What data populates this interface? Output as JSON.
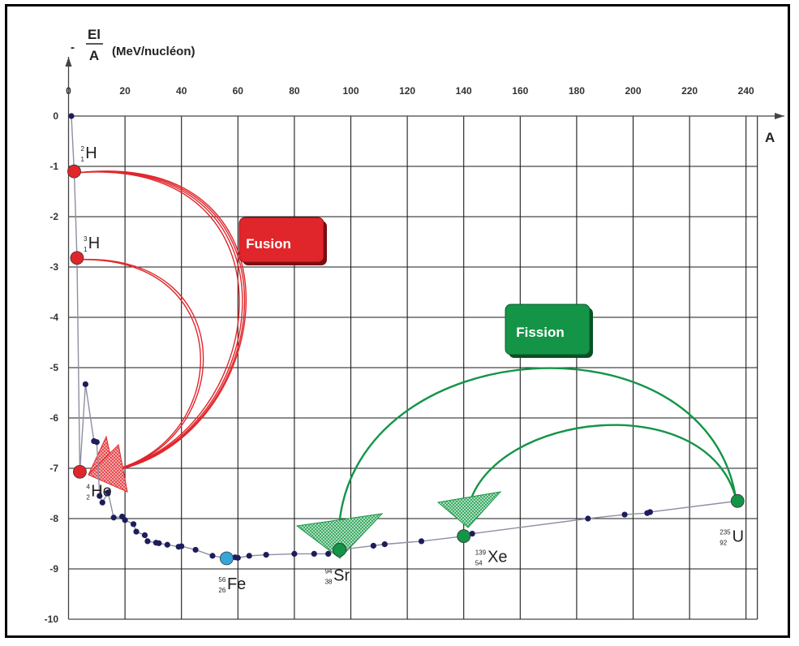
{
  "colors": {
    "grid": "#1a1a1a",
    "curve": "#8e8ea3",
    "point": "#1d1d5c",
    "fusion": "#e0262b",
    "fission": "#149447",
    "iron": "#34a6dc"
  },
  "chart_data": {
    "type": "scatter",
    "xlabel": "A",
    "ylabel": {
      "sign": "-",
      "numerator": "El",
      "denominator": "A",
      "unit": "(MeV/nucléon)"
    },
    "xlim": [
      0,
      240
    ],
    "ylim": [
      -10,
      0
    ],
    "x_ticks": [
      0,
      20,
      40,
      60,
      80,
      100,
      120,
      140,
      160,
      180,
      200,
      220,
      240
    ],
    "y_ticks": [
      0,
      -1,
      -2,
      -3,
      -4,
      -5,
      -6,
      -7,
      -8,
      -9,
      -10
    ],
    "grid": true,
    "points": [
      {
        "x": 1,
        "y": 0
      },
      {
        "x": 6,
        "y": -5.33
      },
      {
        "x": 9,
        "y": -6.46
      },
      {
        "x": 10,
        "y": -6.48
      },
      {
        "x": 11,
        "y": -7.55
      },
      {
        "x": 12,
        "y": -7.68
      },
      {
        "x": 14,
        "y": -7.48
      },
      {
        "x": 16,
        "y": -7.98
      },
      {
        "x": 19,
        "y": -7.96
      },
      {
        "x": 20,
        "y": -8.03
      },
      {
        "x": 23,
        "y": -8.11
      },
      {
        "x": 24,
        "y": -8.26
      },
      {
        "x": 27,
        "y": -8.33
      },
      {
        "x": 28,
        "y": -8.45
      },
      {
        "x": 31,
        "y": -8.48
      },
      {
        "x": 32,
        "y": -8.49
      },
      {
        "x": 35,
        "y": -8.52
      },
      {
        "x": 39,
        "y": -8.56
      },
      {
        "x": 40,
        "y": -8.55
      },
      {
        "x": 45,
        "y": -8.62
      },
      {
        "x": 51,
        "y": -8.74
      },
      {
        "x": 59,
        "y": -8.77
      },
      {
        "x": 60,
        "y": -8.78
      },
      {
        "x": 64,
        "y": -8.74
      },
      {
        "x": 70,
        "y": -8.72
      },
      {
        "x": 80,
        "y": -8.7
      },
      {
        "x": 87,
        "y": -8.7
      },
      {
        "x": 92,
        "y": -8.7
      },
      {
        "x": 108,
        "y": -8.54
      },
      {
        "x": 112,
        "y": -8.51
      },
      {
        "x": 125,
        "y": -8.45
      },
      {
        "x": 143,
        "y": -8.3
      },
      {
        "x": 184,
        "y": -8.0
      },
      {
        "x": 197,
        "y": -7.92
      },
      {
        "x": 205,
        "y": -7.89
      },
      {
        "x": 206,
        "y": -7.87
      }
    ],
    "nuclides": [
      {
        "id": "h2",
        "symbol": "H",
        "mass": "2",
        "atomic": "1",
        "x": 2,
        "y": -1.1,
        "group": "fusion"
      },
      {
        "id": "h3",
        "symbol": "H",
        "mass": "3",
        "atomic": "1",
        "x": 3,
        "y": -2.82,
        "group": "fusion"
      },
      {
        "id": "he4",
        "symbol": "He",
        "mass": "4",
        "atomic": "2",
        "x": 4,
        "y": -7.07,
        "group": "fusion"
      },
      {
        "id": "fe56",
        "symbol": "Fe",
        "mass": "56",
        "atomic": "26",
        "x": 56,
        "y": -8.79,
        "group": "iron"
      },
      {
        "id": "sr94",
        "symbol": "Sr",
        "mass": "94",
        "atomic": "38",
        "x": 96,
        "y": -8.62,
        "group": "fission"
      },
      {
        "id": "xe139",
        "symbol": "Xe",
        "mass": "139",
        "atomic": "54",
        "x": 140,
        "y": -8.35,
        "group": "fission"
      },
      {
        "id": "u235",
        "symbol": "U",
        "mass": "235",
        "atomic": "92",
        "x": 237,
        "y": -7.65,
        "group": "fission"
      }
    ],
    "annotations": [
      {
        "id": "fusion",
        "text": "Fusion",
        "color": "#e0262b"
      },
      {
        "id": "fission",
        "text": "Fission",
        "color": "#149447"
      }
    ]
  }
}
